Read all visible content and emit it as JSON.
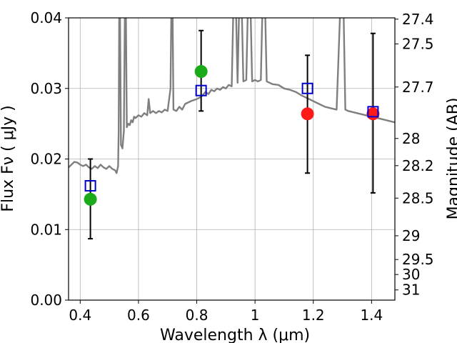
{
  "chart_data": {
    "type": "scatter",
    "xlabel": "Wavelength  λ (μm)",
    "ylabel": "Flux  Fν  ( μJy )",
    "y2label": "Magnitude (AB)",
    "xlim": [
      0.36,
      1.48
    ],
    "ylim": [
      0.0,
      0.04
    ],
    "grid": true,
    "x_ticks": [
      {
        "value": 0.4,
        "label": "0.4"
      },
      {
        "value": 0.6,
        "label": "0.6"
      },
      {
        "value": 0.8,
        "label": "0.8"
      },
      {
        "value": 1.0,
        "label": "1"
      },
      {
        "value": 1.2,
        "label": "1.2"
      },
      {
        "value": 1.4,
        "label": "1.4"
      }
    ],
    "y_ticks": [
      {
        "value": 0.0,
        "label": "0.00"
      },
      {
        "value": 0.01,
        "label": "0.01"
      },
      {
        "value": 0.02,
        "label": "0.02"
      },
      {
        "value": 0.03,
        "label": "0.03"
      },
      {
        "value": 0.04,
        "label": "0.04"
      }
    ],
    "y2_ticks": [
      {
        "value": 27.4,
        "label": "27.4"
      },
      {
        "value": 27.5,
        "label": "27.5"
      },
      {
        "value": 27.7,
        "label": "27.7"
      },
      {
        "value": 28.0,
        "label": "28"
      },
      {
        "value": 28.2,
        "label": "28.2"
      },
      {
        "value": 28.5,
        "label": "28.5"
      },
      {
        "value": 29.0,
        "label": "29"
      },
      {
        "value": 29.5,
        "label": "29.5"
      },
      {
        "value": 30.0,
        "label": "30"
      },
      {
        "value": 31.0,
        "label": "31"
      }
    ],
    "series": [
      {
        "name": "model spectrum",
        "kind": "line",
        "color": "#7f7f7f",
        "x": [
          0.36,
          0.37,
          0.38,
          0.39,
          0.4,
          0.41,
          0.42,
          0.43,
          0.44,
          0.45,
          0.46,
          0.47,
          0.48,
          0.49,
          0.5,
          0.51,
          0.52,
          0.525,
          0.53,
          0.532,
          0.535,
          0.54,
          0.545,
          0.55,
          0.555,
          0.56,
          0.565,
          0.57,
          0.575,
          0.58,
          0.585,
          0.59,
          0.6,
          0.61,
          0.62,
          0.63,
          0.635,
          0.64,
          0.65,
          0.66,
          0.67,
          0.68,
          0.69,
          0.7,
          0.71,
          0.715,
          0.72,
          0.73,
          0.74,
          0.75,
          0.76,
          0.78,
          0.8,
          0.815,
          0.83,
          0.84,
          0.85,
          0.86,
          0.87,
          0.88,
          0.89,
          0.9,
          0.91,
          0.92,
          0.93,
          0.94,
          0.95,
          0.96,
          0.97,
          0.98,
          0.99,
          1.0,
          1.01,
          1.02,
          1.03,
          1.04,
          1.05,
          1.06,
          1.08,
          1.1,
          1.12,
          1.14,
          1.16,
          1.18,
          1.2,
          1.22,
          1.24,
          1.26,
          1.28,
          1.3,
          1.31,
          1.32,
          1.34,
          1.36,
          1.38,
          1.4,
          1.42,
          1.44,
          1.46,
          1.48
        ],
        "y": [
          0.0188,
          0.0192,
          0.0196,
          0.0195,
          0.0192,
          0.019,
          0.0192,
          0.0188,
          0.0186,
          0.019,
          0.0187,
          0.0192,
          0.0188,
          0.0186,
          0.019,
          0.0186,
          0.0184,
          0.018,
          0.019,
          0.024,
          0.05,
          0.022,
          0.0215,
          0.024,
          0.05,
          0.0245,
          0.025,
          0.0248,
          0.0255,
          0.0252,
          0.026,
          0.0258,
          0.0262,
          0.026,
          0.0265,
          0.0262,
          0.0285,
          0.0265,
          0.0268,
          0.0265,
          0.0268,
          0.0266,
          0.027,
          0.0268,
          0.03,
          0.05,
          0.027,
          0.0268,
          0.0274,
          0.027,
          0.0278,
          0.0282,
          0.0285,
          0.0288,
          0.0295,
          0.0292,
          0.0298,
          0.0296,
          0.03,
          0.0298,
          0.0302,
          0.03,
          0.0305,
          0.0303,
          0.05,
          0.0308,
          0.05,
          0.031,
          0.0312,
          0.05,
          0.031,
          0.0312,
          0.031,
          0.0312,
          0.05,
          0.031,
          0.0308,
          0.0306,
          0.0305,
          0.03,
          0.0298,
          0.0295,
          0.029,
          0.0286,
          0.0282,
          0.0278,
          0.0274,
          0.0272,
          0.027,
          0.05,
          0.027,
          0.0268,
          0.0266,
          0.0264,
          0.0262,
          0.026,
          0.0258,
          0.0256,
          0.0254,
          0.0252
        ]
      },
      {
        "name": "observed photometry",
        "kind": "points",
        "marker": "filled-circle",
        "points": [
          {
            "x": 0.435,
            "y": 0.0143,
            "color": "#1aaa1a"
          },
          {
            "x": 0.815,
            "y": 0.0324,
            "color": "#1aaa1a"
          },
          {
            "x": 1.18,
            "y": 0.0264,
            "color": "#ff1a1a"
          },
          {
            "x": 1.405,
            "y": 0.0264,
            "color": "#ff1a1a"
          }
        ]
      },
      {
        "name": "model photometry",
        "kind": "points",
        "marker": "open-square",
        "color": "#0000cc",
        "points": [
          {
            "x": 0.435,
            "y": 0.0162
          },
          {
            "x": 0.815,
            "y": 0.0297
          },
          {
            "x": 1.18,
            "y": 0.03
          },
          {
            "x": 1.405,
            "y": 0.0267
          }
        ]
      },
      {
        "name": "error bars",
        "kind": "errorbar",
        "color": "#000000",
        "bars": [
          {
            "x": 0.435,
            "low": 0.0087,
            "high": 0.02
          },
          {
            "x": 0.815,
            "low": 0.0268,
            "high": 0.0382
          },
          {
            "x": 1.18,
            "low": 0.018,
            "high": 0.0347
          },
          {
            "x": 1.405,
            "low": 0.0152,
            "high": 0.0378
          }
        ]
      }
    ]
  }
}
